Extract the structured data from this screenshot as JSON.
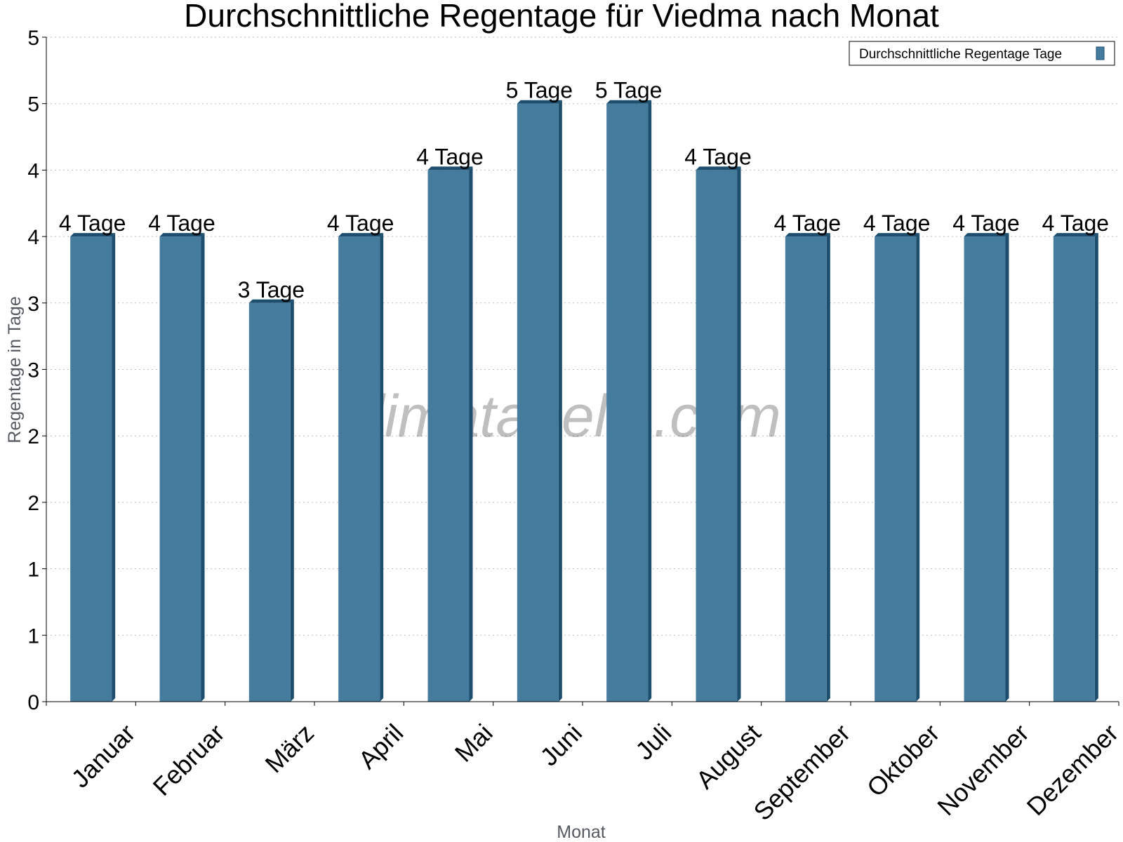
{
  "watermark": "klimatabelle.com",
  "colors": {
    "bar_face": "#457b9d",
    "bar_side": "#1d4e6e",
    "bar_top": "#1d4e6e",
    "grid": "#bbbbbb",
    "axis": "#000000"
  },
  "chart_data": {
    "type": "bar",
    "title": "Durchschnittliche Regentage für Viedma nach Monat",
    "xlabel": "Monat",
    "ylabel": "Regentage in Tage",
    "categories": [
      "Januar",
      "Februar",
      "März",
      "April",
      "Mai",
      "Juni",
      "Juli",
      "August",
      "September",
      "Oktober",
      "November",
      "Dezember"
    ],
    "series": [
      {
        "name": "Durchschnittliche Regentage Tage",
        "values": [
          3.5,
          3.5,
          3.0,
          3.5,
          4.0,
          4.5,
          4.5,
          4.0,
          3.5,
          3.5,
          3.5,
          3.5
        ],
        "labels": [
          "4 Tage",
          "4 Tage",
          "3 Tage",
          "4 Tage",
          "4 Tage",
          "5 Tage",
          "5 Tage",
          "4 Tage",
          "4 Tage",
          "4 Tage",
          "4 Tage",
          "4 Tage"
        ]
      }
    ],
    "ylim": [
      0,
      5
    ],
    "yticks": [
      0,
      0.5,
      1,
      1.5,
      2,
      2.5,
      3,
      3.5,
      4,
      4.5,
      5
    ],
    "ytick_labels": [
      "0",
      "1",
      "1",
      "2",
      "2",
      "3",
      "3",
      "4",
      "4",
      "5",
      "5"
    ],
    "grid": true,
    "legend_position": "top-right"
  }
}
